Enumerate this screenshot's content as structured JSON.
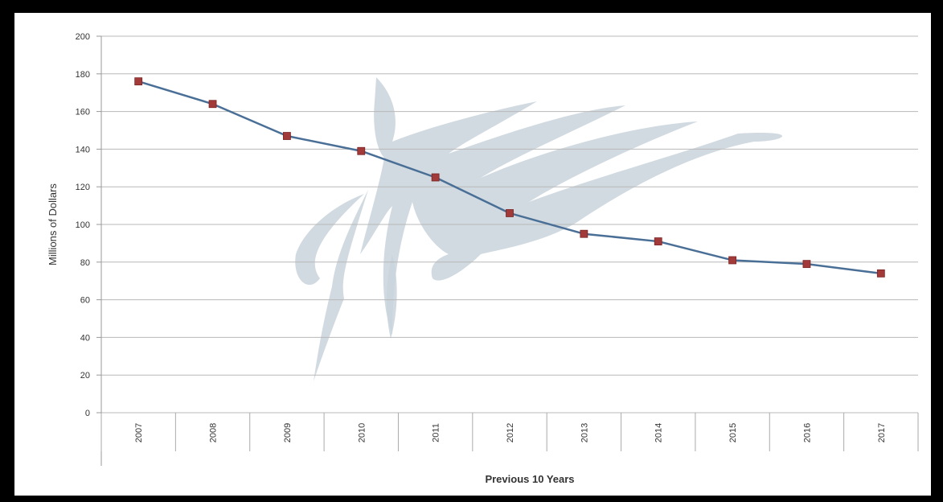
{
  "chart_data": {
    "type": "line",
    "categories": [
      "2007",
      "2008",
      "2009",
      "2010",
      "2011",
      "2012",
      "2013",
      "2014",
      "2015",
      "2016",
      "2017"
    ],
    "series": [
      {
        "values": [
          176,
          164,
          147,
          139,
          125,
          106,
          95,
          91,
          81,
          79,
          74
        ]
      }
    ],
    "xlabel": "Previous 10 Years",
    "ylabel": "Millions of Dollars",
    "ylim": [
      0,
      200
    ],
    "yticks": [
      0,
      20,
      40,
      60,
      80,
      100,
      120,
      140,
      160,
      180,
      200
    ],
    "grid": true,
    "legend": "none",
    "watermark": "horse-head-logo",
    "colors": {
      "line": "#4a6f96",
      "marker": "#a33a3a",
      "grid": "#b8b8b8",
      "watermark": "#c9d4dc",
      "frame": "#000000"
    }
  }
}
